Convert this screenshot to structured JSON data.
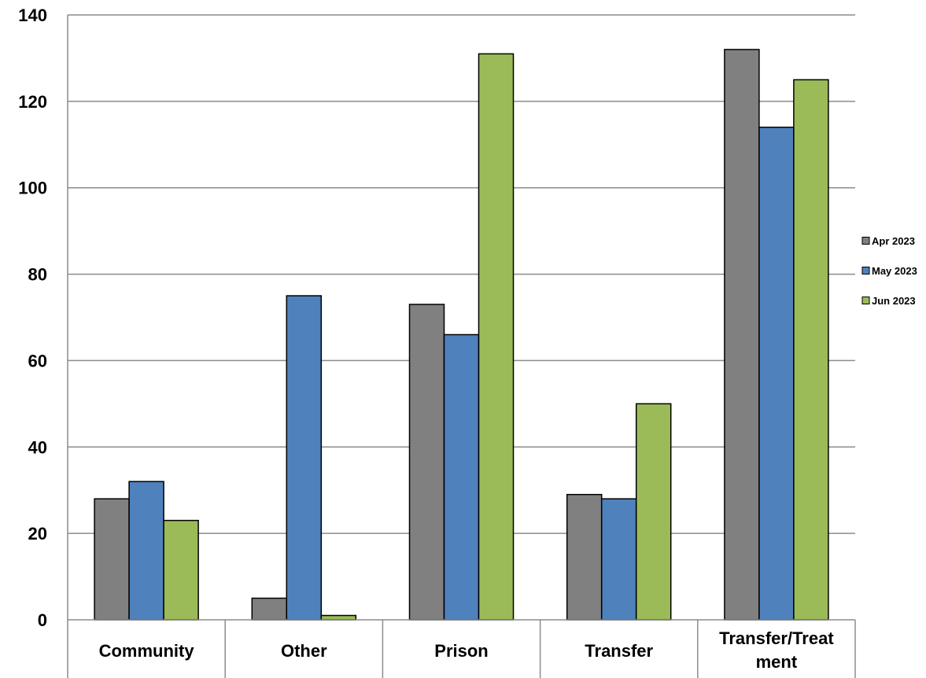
{
  "chart_data": {
    "type": "bar",
    "categories": [
      [
        "Community"
      ],
      [
        "Other"
      ],
      [
        "Prison"
      ],
      [
        "Transfer"
      ],
      [
        "Transfer/Treat",
        "ment"
      ]
    ],
    "series": [
      {
        "name": "Apr 2023",
        "color": "#808080",
        "values": [
          28,
          5,
          73,
          29,
          132
        ]
      },
      {
        "name": "May 2023",
        "color": "#4F81BD",
        "values": [
          32,
          75,
          66,
          28,
          114
        ]
      },
      {
        "name": "Jun 2023",
        "color": "#9BBB59",
        "values": [
          23,
          1,
          131,
          50,
          125
        ]
      }
    ],
    "ylim": [
      0,
      140
    ],
    "yticks": [
      0,
      20,
      40,
      60,
      80,
      100,
      120,
      140
    ],
    "grid": true,
    "legend": "right",
    "title": "",
    "xlabel": "",
    "ylabel": ""
  }
}
